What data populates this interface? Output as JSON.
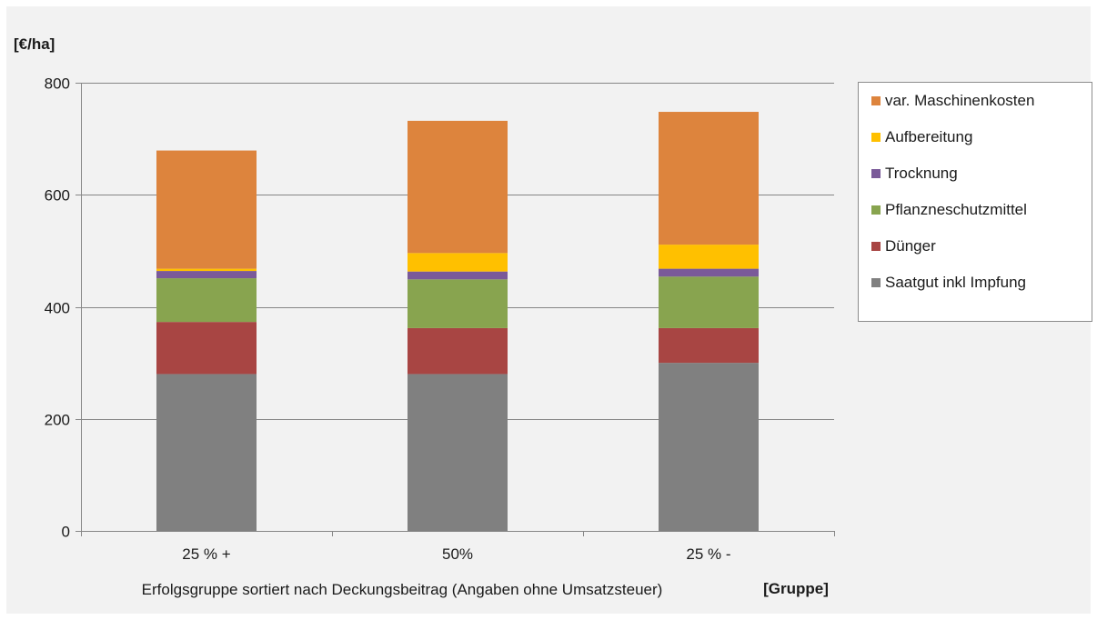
{
  "chart_data": {
    "type": "bar",
    "stacked": true,
    "ylabel": "[€/ha]",
    "xlabel": "Erfolgsgruppe sortiert nach Deckungsbeitrag (Angaben ohne Umsatzsteuer)",
    "xunit": "[Gruppe]",
    "ylim": [
      0,
      800
    ],
    "yticks": [
      "0",
      "200",
      "400",
      "600",
      "800"
    ],
    "grid": true,
    "legend_position": "right",
    "categories": [
      "25 % +",
      "50%",
      "25 % -"
    ],
    "series": [
      {
        "name": "Saatgut inkl Impfung",
        "color": "#808080",
        "values": [
          280,
          280,
          300
        ]
      },
      {
        "name": "Dünger",
        "color": "#a84543",
        "values": [
          93,
          82,
          62
        ]
      },
      {
        "name": "Pflanzneschutzmittel",
        "color": "#88a44f",
        "values": [
          78,
          87,
          92
        ]
      },
      {
        "name": "Trocknung",
        "color": "#7a5a99",
        "values": [
          13,
          14,
          14
        ]
      },
      {
        "name": "Aufbereitung",
        "color": "#ffc000",
        "values": [
          4,
          33,
          43
        ]
      },
      {
        "name": "var. Maschinenkosten",
        "color": "#dd843d",
        "values": [
          211,
          236,
          237
        ]
      }
    ]
  }
}
